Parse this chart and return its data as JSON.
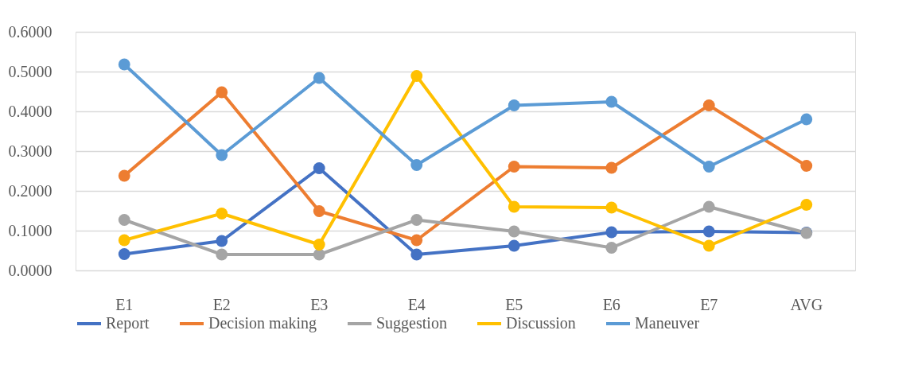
{
  "chart_data": {
    "type": "line",
    "categories": [
      "E1",
      "E2",
      "E3",
      "E4",
      "E5",
      "E6",
      "E7",
      "AVG"
    ],
    "ylim": [
      0,
      0.6
    ],
    "yticks": [
      {
        "value": 0,
        "label": "0.0000"
      },
      {
        "value": 0.1,
        "label": "0.1000"
      },
      {
        "value": 0.2,
        "label": "0.2000"
      },
      {
        "value": 0.3,
        "label": "0.3000"
      },
      {
        "value": 0.4,
        "label": "0.4000"
      },
      {
        "value": 0.5,
        "label": "0.5000"
      },
      {
        "value": 0.6,
        "label": "0.6000"
      }
    ],
    "grid": "y",
    "legend": "bottom",
    "marker": "circle",
    "line_style": "solid",
    "series": [
      {
        "name": "Report",
        "color": "#4472c4",
        "values": [
          0.041,
          0.074,
          0.257,
          0.04,
          0.062,
          0.096,
          0.098,
          0.095
        ]
      },
      {
        "name": "Decision making",
        "color": "#ed7d31",
        "values": [
          0.238,
          0.448,
          0.149,
          0.076,
          0.261,
          0.258,
          0.415,
          0.263
        ]
      },
      {
        "name": "Suggestion",
        "color": "#a5a5a5",
        "values": [
          0.127,
          0.04,
          0.04,
          0.127,
          0.098,
          0.057,
          0.16,
          0.094
        ]
      },
      {
        "name": "Discussion",
        "color": "#ffc000",
        "values": [
          0.076,
          0.143,
          0.065,
          0.489,
          0.16,
          0.158,
          0.062,
          0.165
        ]
      },
      {
        "name": "Maneuver",
        "color": "#5b9bd5",
        "values": [
          0.518,
          0.29,
          0.484,
          0.265,
          0.415,
          0.424,
          0.261,
          0.38
        ]
      }
    ]
  }
}
